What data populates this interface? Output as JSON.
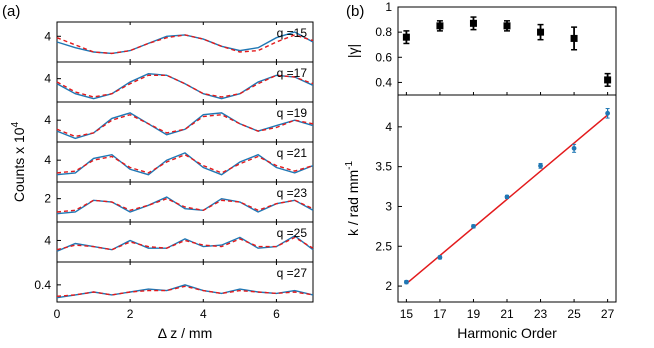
{
  "panel_labels": {
    "a": "(a)",
    "b": "(b)"
  },
  "chart_data": [
    {
      "type": "line",
      "panel": "(a)",
      "xlabel": "Δ z / mm",
      "ylabel": "Counts x 10",
      "ylabel_exponent": "4",
      "xlim": [
        0,
        7
      ],
      "xticks": [
        0,
        2,
        4,
        6
      ],
      "series_styles": {
        "measured_color": "#1f77b4",
        "fit_color": "#e31a1c",
        "fit_style": "dashed"
      },
      "subplots": [
        {
          "label": "q =15",
          "ytick": "4",
          "ylim": [
            2.2,
            5.0
          ],
          "ytick_value": 4,
          "measured": {
            "x": [
              0,
              0.5,
              1,
              1.5,
              2,
              2.5,
              3,
              3.5,
              4,
              4.5,
              5,
              5.5,
              6,
              6.5,
              7
            ],
            "y": [
              3.6,
              3.2,
              2.9,
              2.8,
              3.0,
              3.5,
              4.0,
              4.1,
              3.8,
              3.3,
              3.0,
              3.2,
              3.9,
              4.3,
              3.6
            ]
          },
          "fit": {
            "x": [
              0,
              0.5,
              1,
              1.5,
              2,
              2.5,
              3,
              3.5,
              4,
              4.5,
              5,
              5.5,
              6,
              6.5,
              7
            ],
            "y": [
              3.9,
              3.4,
              2.9,
              2.8,
              3.0,
              3.5,
              3.9,
              4.1,
              3.8,
              3.3,
              2.9,
              3.0,
              3.6,
              4.1,
              3.7
            ]
          }
        },
        {
          "label": "q =17",
          "ytick": "4",
          "ylim": [
            2.6,
            5.0
          ],
          "ytick_value": 4,
          "measured": {
            "x": [
              0,
              0.5,
              1,
              1.5,
              2,
              2.5,
              3,
              3.5,
              4,
              4.5,
              5,
              5.5,
              6,
              6.5,
              7
            ],
            "y": [
              3.7,
              3.1,
              2.8,
              3.1,
              3.8,
              4.3,
              4.2,
              3.7,
              3.1,
              2.8,
              3.1,
              3.8,
              4.2,
              4.1,
              3.6
            ]
          },
          "fit": {
            "x": [
              0,
              0.5,
              1,
              1.5,
              2,
              2.5,
              3,
              3.5,
              4,
              4.5,
              5,
              5.5,
              6,
              6.5,
              7
            ],
            "y": [
              3.8,
              3.2,
              2.9,
              3.1,
              3.7,
              4.2,
              4.2,
              3.7,
              3.1,
              2.9,
              3.1,
              3.7,
              4.2,
              4.1,
              3.7
            ]
          }
        },
        {
          "label": "q =19",
          "ytick": "4",
          "ylim": [
            2.8,
            5.0
          ],
          "ytick_value": 4,
          "measured": {
            "x": [
              0,
              0.5,
              1,
              1.5,
              2,
              2.5,
              3,
              3.5,
              4,
              4.5,
              5,
              5.5,
              6,
              6.5,
              7
            ],
            "y": [
              3.4,
              3.0,
              3.3,
              4.1,
              4.4,
              3.8,
              3.2,
              3.5,
              4.3,
              4.4,
              3.8,
              3.4,
              3.7,
              4.0,
              3.7
            ]
          },
          "fit": {
            "x": [
              0,
              0.5,
              1,
              1.5,
              2,
              2.5,
              3,
              3.5,
              4,
              4.5,
              5,
              5.5,
              6,
              6.5,
              7
            ],
            "y": [
              3.5,
              3.1,
              3.3,
              4.0,
              4.3,
              3.8,
              3.3,
              3.5,
              4.2,
              4.3,
              3.8,
              3.4,
              3.6,
              4.0,
              3.8
            ]
          }
        },
        {
          "label": "q =21",
          "ytick": "4",
          "ylim": [
            2.8,
            5.0
          ],
          "ytick_value": 4,
          "measured": {
            "x": [
              0,
              0.5,
              1,
              1.5,
              2,
              2.5,
              3,
              3.5,
              4,
              4.5,
              5,
              5.5,
              6,
              6.5,
              7
            ],
            "y": [
              3.2,
              3.3,
              4.1,
              4.3,
              3.5,
              3.2,
              4.0,
              4.4,
              3.6,
              3.2,
              3.9,
              4.3,
              3.6,
              3.3,
              3.7
            ]
          },
          "fit": {
            "x": [
              0,
              0.5,
              1,
              1.5,
              2,
              2.5,
              3,
              3.5,
              4,
              4.5,
              5,
              5.5,
              6,
              6.5,
              7
            ],
            "y": [
              3.3,
              3.4,
              4.0,
              4.2,
              3.6,
              3.3,
              3.9,
              4.3,
              3.7,
              3.3,
              3.8,
              4.2,
              3.7,
              3.4,
              3.7
            ]
          }
        },
        {
          "label": "q =23",
          "ytick": "2",
          "ylim": [
            0.6,
            3.0
          ],
          "ytick_value": 2,
          "measured": {
            "x": [
              0,
              0.5,
              1,
              1.5,
              2,
              2.5,
              3,
              3.5,
              4,
              4.5,
              5,
              5.5,
              6,
              6.5,
              7
            ],
            "y": [
              1.1,
              1.2,
              1.9,
              1.8,
              1.2,
              1.6,
              2.1,
              1.4,
              1.3,
              2.0,
              1.8,
              1.2,
              1.7,
              1.9,
              1.3
            ]
          },
          "fit": {
            "x": [
              0,
              0.5,
              1,
              1.5,
              2,
              2.5,
              3,
              3.5,
              4,
              4.5,
              5,
              5.5,
              6,
              6.5,
              7
            ],
            "y": [
              1.2,
              1.3,
              1.9,
              1.8,
              1.3,
              1.6,
              2.0,
              1.5,
              1.3,
              1.9,
              1.8,
              1.3,
              1.7,
              1.9,
              1.4
            ]
          }
        },
        {
          "label": "q =25",
          "ytick": "4",
          "ylim": [
            2.6,
            5.2
          ],
          "ytick_value": 4,
          "measured": {
            "x": [
              0,
              0.5,
              1,
              1.5,
              2,
              2.5,
              3,
              3.5,
              4,
              4.5,
              5,
              5.5,
              6,
              6.5,
              7
            ],
            "y": [
              3.3,
              3.8,
              3.6,
              3.4,
              4.0,
              3.5,
              3.5,
              4.1,
              3.6,
              3.7,
              4.2,
              3.5,
              3.6,
              4.3,
              3.4
            ]
          },
          "fit": {
            "x": [
              0,
              0.5,
              1,
              1.5,
              2,
              2.5,
              3,
              3.5,
              4,
              4.5,
              5,
              5.5,
              6,
              6.5,
              7
            ],
            "y": [
              3.4,
              3.7,
              3.6,
              3.4,
              3.9,
              3.6,
              3.5,
              4.0,
              3.7,
              3.6,
              4.1,
              3.6,
              3.6,
              4.2,
              3.5
            ]
          }
        },
        {
          "label": "q =27",
          "ytick": "0.4",
          "ylim": [
            0.28,
            0.56
          ],
          "ytick_value": 0.4,
          "measured": {
            "x": [
              0,
              0.5,
              1,
              1.5,
              2,
              2.5,
              3,
              3.5,
              4,
              4.5,
              5,
              5.5,
              6,
              6.5,
              7
            ],
            "y": [
              0.31,
              0.33,
              0.35,
              0.33,
              0.35,
              0.37,
              0.36,
              0.4,
              0.36,
              0.34,
              0.37,
              0.35,
              0.34,
              0.36,
              0.33
            ]
          },
          "fit": {
            "x": [
              0,
              0.5,
              1,
              1.5,
              2,
              2.5,
              3,
              3.5,
              4,
              4.5,
              5,
              5.5,
              6,
              6.5,
              7
            ],
            "y": [
              0.32,
              0.33,
              0.35,
              0.33,
              0.35,
              0.36,
              0.36,
              0.39,
              0.36,
              0.34,
              0.36,
              0.35,
              0.34,
              0.35,
              0.33
            ]
          }
        }
      ]
    },
    {
      "type": "scatter",
      "panel": "(b) top",
      "ylabel": "|γ|",
      "ylim": [
        0.3,
        1.0
      ],
      "yticks": [
        0.4,
        0.6,
        0.8,
        1
      ],
      "xlim": [
        14.5,
        27.5
      ],
      "marker_color": "#000000",
      "x": [
        15,
        17,
        19,
        21,
        23,
        25,
        27
      ],
      "y": [
        0.76,
        0.85,
        0.87,
        0.85,
        0.8,
        0.75,
        0.42
      ],
      "yerr": [
        0.05,
        0.04,
        0.05,
        0.04,
        0.06,
        0.09,
        0.05
      ]
    },
    {
      "type": "scatter",
      "panel": "(b) bottom",
      "xlabel": "Harmonic Order",
      "ylabel": "k / rad mm",
      "ylabel_exponent": "-1",
      "xlim": [
        14.5,
        27.5
      ],
      "ylim": [
        1.8,
        4.4
      ],
      "xticks": [
        15,
        17,
        19,
        21,
        23,
        25,
        27
      ],
      "yticks": [
        2,
        2.5,
        3,
        3.5,
        4
      ],
      "marker_color": "#1f77b4",
      "fit_color": "#e31a1c",
      "x": [
        15,
        17,
        19,
        21,
        23,
        25,
        27
      ],
      "y": [
        2.05,
        2.36,
        2.75,
        3.12,
        3.51,
        3.73,
        4.17
      ],
      "yerr": [
        0.02,
        0.02,
        0.02,
        0.02,
        0.03,
        0.05,
        0.06
      ],
      "fit_line": {
        "x": [
          15,
          27
        ],
        "y": [
          2.03,
          4.15
        ]
      }
    }
  ]
}
